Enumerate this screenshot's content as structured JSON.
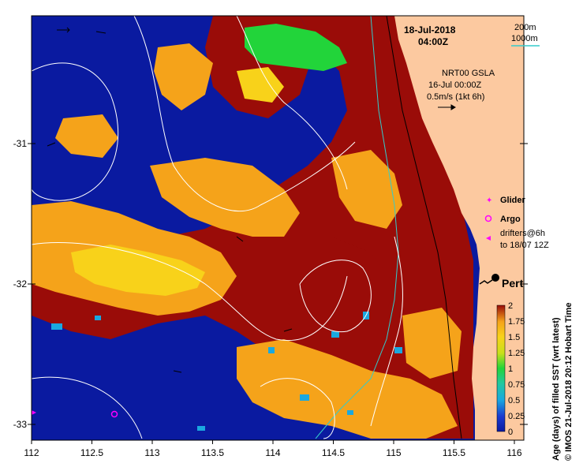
{
  "header": {
    "date": "18-Jul-2018",
    "time": "04:00Z"
  },
  "depth_contours": {
    "label_200m": "200m",
    "label_1000m": "1000m",
    "color_200m": "#000000",
    "color_1000m": "#33cccc"
  },
  "gsla": {
    "product": "NRT00 GSLA",
    "date": "16-Jul 00:00Z",
    "scale": "0.5m/s (1kt 6h)"
  },
  "legend": {
    "glider": "Glider",
    "argo": "Argo",
    "drifters_line1": "drifters@6h",
    "drifters_line2": "to 18/07 12Z",
    "glider_color": "#ff00ff",
    "argo_color": "#ff00ff",
    "drifters_color": "#ff00ff"
  },
  "place": {
    "name": "Perth"
  },
  "axes": {
    "x_ticks": [
      "112",
      "112.5",
      "113",
      "113.5",
      "114",
      "114.5",
      "115",
      "115.5",
      "116"
    ],
    "y_ticks": [
      "-31",
      "-32",
      "-33"
    ]
  },
  "colorbar": {
    "label": "Age (days) of filled SST (wrt latest)",
    "ticks": [
      "2",
      "1.75",
      "1.5",
      "1.25",
      "1",
      "0.75",
      "0.5",
      "0.25",
      "0"
    ],
    "range": [
      0,
      2
    ]
  },
  "credit": "© IMOS 21-Jul-2018 20:12 Hobart Time",
  "colors": {
    "land": "#fcc9a0",
    "deep_blue": "#0a1aa0",
    "dark_red": "#9a0c08",
    "orange": "#f5a31a",
    "yellow": "#f8d21a",
    "green": "#22d43a",
    "cyan": "#1aa8e0"
  }
}
